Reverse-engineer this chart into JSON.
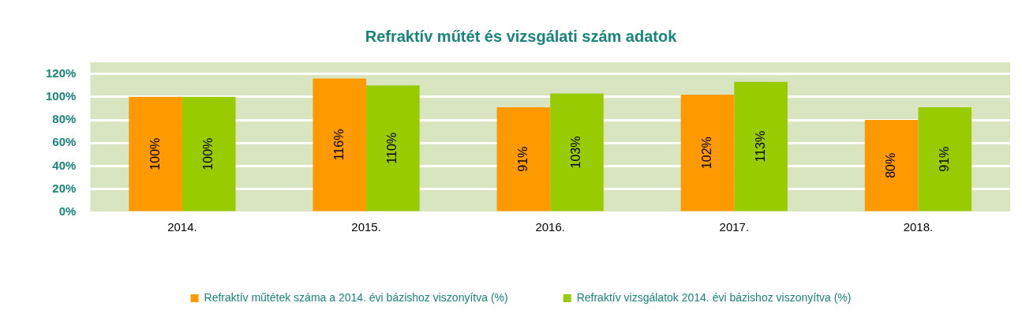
{
  "chart_data": {
    "type": "bar",
    "title": "Refraktív műtét és vizsgálati szám adatok",
    "categories": [
      "2014.",
      "2015.",
      "2016.",
      "2017.",
      "2018."
    ],
    "series": [
      {
        "name": "Refraktív műtétek száma a 2014. évi bázishoz viszonyítva (%)",
        "color": "#ff9900",
        "values": [
          100,
          116,
          91,
          102,
          80
        ]
      },
      {
        "name": "Refraktív vizsgálatok 2014. évi bázishoz viszonyítva (%)",
        "color": "#99cc00",
        "values": [
          100,
          110,
          103,
          113,
          91
        ]
      }
    ],
    "ylim": [
      0,
      130
    ],
    "yticks": [
      {
        "value": 0,
        "label": "0%"
      },
      {
        "value": 20,
        "label": "20%"
      },
      {
        "value": 40,
        "label": "40%"
      },
      {
        "value": 60,
        "label": "60%"
      },
      {
        "value": 80,
        "label": "80%"
      },
      {
        "value": 100,
        "label": "100%"
      },
      {
        "value": 120,
        "label": "120%"
      }
    ],
    "grid": "y",
    "legend": "bottom",
    "value_labels": [
      [
        "100%",
        "116%",
        "91%",
        "102%",
        "80%"
      ],
      [
        "100%",
        "110%",
        "103%",
        "113%",
        "91%"
      ]
    ]
  }
}
